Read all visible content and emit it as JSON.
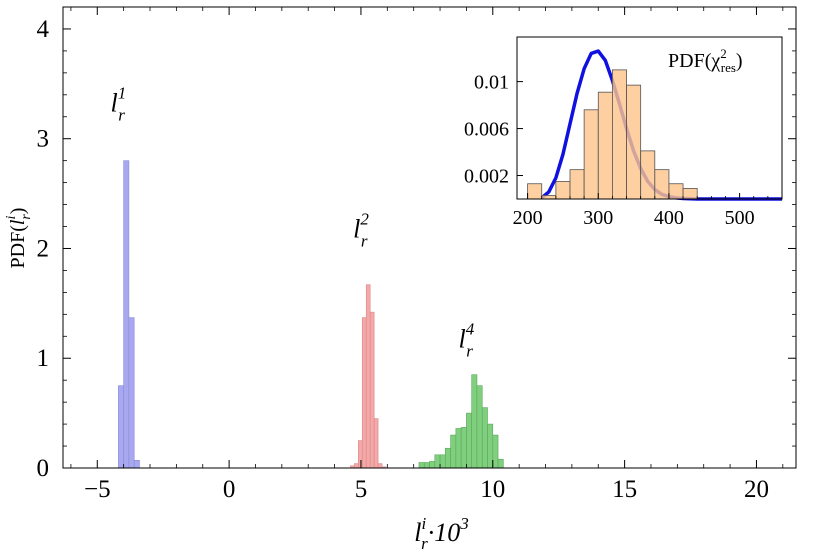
{
  "chart_data": [
    {
      "type": "bar",
      "xlabel": "l_r^i·10^3",
      "ylabel": "PDF(l_r^i)",
      "xlim": [
        -6.3,
        21.5
      ],
      "ylim": [
        0,
        4.2
      ],
      "xticks": [
        "−5",
        "0",
        "5",
        "10",
        "15",
        "20"
      ],
      "xtick_values": [
        -5,
        0,
        5,
        10,
        15,
        20
      ],
      "yticks": [
        "0",
        "1",
        "2",
        "3",
        "4"
      ],
      "ytick_values": [
        0,
        1,
        2,
        3,
        4
      ],
      "grid": false,
      "series": [
        {
          "name": "l_r^1",
          "label_base": "l",
          "label_sub": "r",
          "label_sup": "1",
          "color": "#a8a8f0",
          "edge": "#8a8ad8",
          "bin_width": 0.2,
          "bins": [
            [
              -4.2,
              0.75
            ],
            [
              -4.0,
              2.8
            ],
            [
              -3.8,
              1.37
            ],
            [
              -3.6,
              0.07
            ]
          ],
          "label_at": [
            -4.2,
            3.25
          ]
        },
        {
          "name": "l_r^2",
          "label_base": "l",
          "label_sub": "r",
          "label_sup": "2",
          "color": "#f5a8a8",
          "edge": "#d88a8a",
          "bin_width": 0.15,
          "bins": [
            [
              4.6,
              0.02
            ],
            [
              4.75,
              0.04
            ],
            [
              4.9,
              0.25
            ],
            [
              5.05,
              1.37
            ],
            [
              5.2,
              1.67
            ],
            [
              5.35,
              1.42
            ],
            [
              5.5,
              0.45
            ],
            [
              5.65,
              0.04
            ],
            [
              5.8,
              0.01
            ]
          ],
          "label_at": [
            5.0,
            2.1
          ]
        },
        {
          "name": "l_r^4",
          "label_base": "l",
          "label_sub": "r",
          "label_sup": "4",
          "color": "#7fcf7f",
          "edge": "#5aa85a",
          "bin_width": 0.2,
          "bins": [
            [
              7.2,
              0.05
            ],
            [
              7.4,
              0.05
            ],
            [
              7.6,
              0.06
            ],
            [
              7.8,
              0.12
            ],
            [
              8.0,
              0.12
            ],
            [
              8.2,
              0.18
            ],
            [
              8.4,
              0.3
            ],
            [
              8.6,
              0.36
            ],
            [
              8.8,
              0.37
            ],
            [
              9.0,
              0.5
            ],
            [
              9.2,
              0.85
            ],
            [
              9.4,
              0.75
            ],
            [
              9.6,
              0.55
            ],
            [
              9.8,
              0.4
            ],
            [
              10.0,
              0.3
            ],
            [
              10.2,
              0.08
            ]
          ],
          "label_at": [
            9.0,
            1.1
          ]
        }
      ]
    },
    {
      "type": "bar",
      "title": "PDF(χ²_res)",
      "title_base": "PDF(χ",
      "title_sup": "2",
      "title_sub": "res",
      "title_end": ")",
      "xlim": [
        185,
        560
      ],
      "ylim": [
        0,
        0.0138
      ],
      "xticks": [
        "200",
        "300",
        "400",
        "500"
      ],
      "xtick_values": [
        200,
        300,
        400,
        500
      ],
      "yticks": [
        "0.002",
        "0.006",
        "0.01"
      ],
      "ytick_values": [
        0.002,
        0.006,
        0.01
      ],
      "histogram": {
        "color": "#fcc48c",
        "edge": "#555555",
        "bin_width": 20,
        "bins": [
          [
            200,
            0.0013
          ],
          [
            220,
            0.0003
          ],
          [
            240,
            0.0015
          ],
          [
            260,
            0.0025
          ],
          [
            280,
            0.0076
          ],
          [
            300,
            0.0091
          ],
          [
            320,
            0.011
          ],
          [
            340,
            0.0097
          ],
          [
            360,
            0.0041
          ],
          [
            380,
            0.0025
          ],
          [
            400,
            0.0013
          ],
          [
            420,
            0.0009
          ]
        ]
      },
      "curve": {
        "color": "#1010e0",
        "description": "chi-square density",
        "points": [
          [
            220,
            0.0001
          ],
          [
            230,
            0.0006
          ],
          [
            240,
            0.0018
          ],
          [
            250,
            0.0038
          ],
          [
            260,
            0.0064
          ],
          [
            270,
            0.009
          ],
          [
            280,
            0.0111
          ],
          [
            290,
            0.0124
          ],
          [
            300,
            0.0126
          ],
          [
            310,
            0.0118
          ],
          [
            320,
            0.0101
          ],
          [
            330,
            0.0081
          ],
          [
            340,
            0.006
          ],
          [
            350,
            0.0041
          ],
          [
            360,
            0.0026
          ],
          [
            370,
            0.0015
          ],
          [
            380,
            0.0008
          ],
          [
            390,
            0.0004
          ],
          [
            400,
            0.0002
          ],
          [
            410,
            0.0001
          ],
          [
            420,
            4e-05
          ],
          [
            440,
            0.0
          ],
          [
            560,
            0.0
          ]
        ]
      }
    }
  ]
}
